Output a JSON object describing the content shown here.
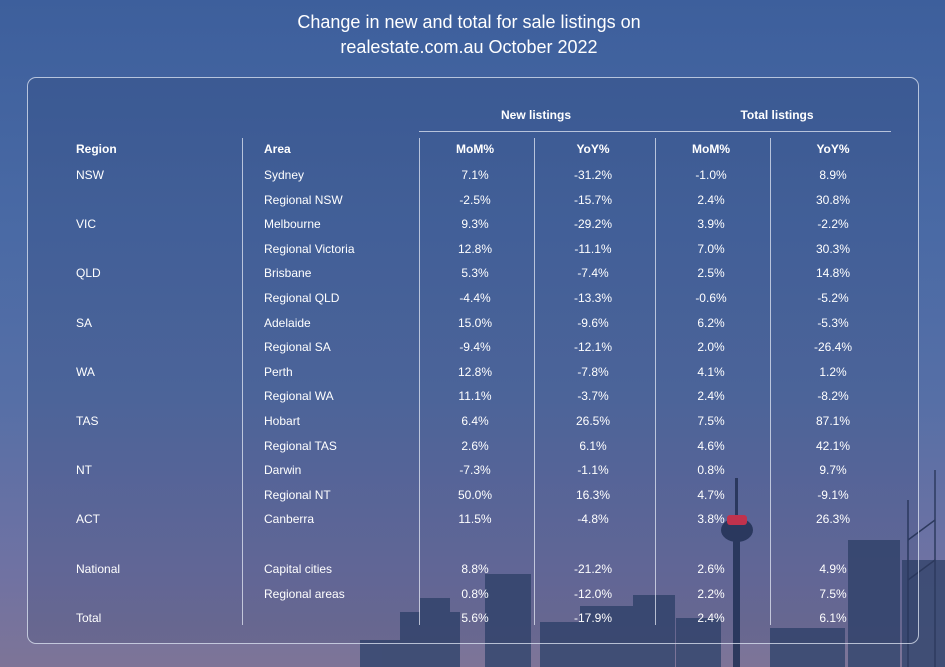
{
  "title_line1": "Change in new and total for sale listings on",
  "title_line2": "realestate.com.au October 2022",
  "chart_data": {
    "type": "table",
    "group_headers": [
      "New listings",
      "Total listings"
    ],
    "columns": [
      "Region",
      "Area",
      "MoM%",
      "YoY%",
      "MoM%",
      "YoY%"
    ],
    "rows": [
      [
        "NSW",
        "Sydney",
        "7.1%",
        "-31.2%",
        "-1.0%",
        "8.9%"
      ],
      [
        "",
        "Regional NSW",
        "-2.5%",
        "-15.7%",
        "2.4%",
        "30.8%"
      ],
      [
        "VIC",
        "Melbourne",
        "9.3%",
        "-29.2%",
        "3.9%",
        "-2.2%"
      ],
      [
        "",
        "Regional Victoria",
        "12.8%",
        "-11.1%",
        "7.0%",
        "30.3%"
      ],
      [
        "QLD",
        "Brisbane",
        "5.3%",
        "-7.4%",
        "2.5%",
        "14.8%"
      ],
      [
        "",
        "Regional QLD",
        "-4.4%",
        "-13.3%",
        "-0.6%",
        "-5.2%"
      ],
      [
        "SA",
        "Adelaide",
        "15.0%",
        "-9.6%",
        "6.2%",
        "-5.3%"
      ],
      [
        "",
        "Regional SA",
        "-9.4%",
        "-12.1%",
        "2.0%",
        "-26.4%"
      ],
      [
        "WA",
        "Perth",
        "12.8%",
        "-7.8%",
        "4.1%",
        "1.2%"
      ],
      [
        "",
        "Regional WA",
        "11.1%",
        "-3.7%",
        "2.4%",
        "-8.2%"
      ],
      [
        "TAS",
        "Hobart",
        "6.4%",
        "26.5%",
        "7.5%",
        "87.1%"
      ],
      [
        "",
        "Regional TAS",
        "2.6%",
        "6.1%",
        "4.6%",
        "42.1%"
      ],
      [
        "NT",
        "Darwin",
        "-7.3%",
        "-1.1%",
        "0.8%",
        "9.7%"
      ],
      [
        "",
        "Regional NT",
        "50.0%",
        "16.3%",
        "4.7%",
        "-9.1%"
      ],
      [
        "ACT",
        "Canberra",
        "11.5%",
        "-4.8%",
        "3.8%",
        "26.3%"
      ],
      [
        "National",
        "Capital cities",
        "8.8%",
        "-21.2%",
        "2.6%",
        "4.9%"
      ],
      [
        "",
        "Regional areas",
        "0.8%",
        "-12.0%",
        "2.2%",
        "7.5%"
      ],
      [
        "Total",
        "",
        "5.6%",
        "-17.9%",
        "2.4%",
        "6.1%"
      ]
    ]
  }
}
